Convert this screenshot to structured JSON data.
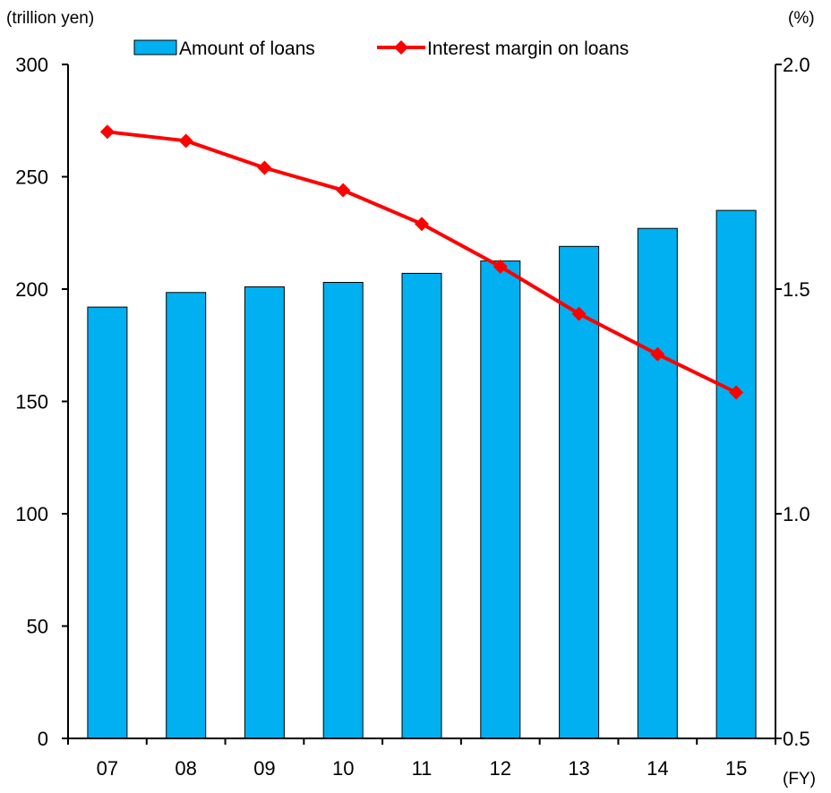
{
  "chart_data": {
    "type": "bar+line",
    "categories": [
      "07",
      "08",
      "09",
      "10",
      "11",
      "12",
      "13",
      "14",
      "15"
    ],
    "series": [
      {
        "name": "Amount of loans",
        "type": "bar",
        "axis": "left",
        "color": "#00b0f0",
        "values": [
          192,
          198.5,
          201,
          203,
          207,
          212.5,
          219,
          227,
          235
        ]
      },
      {
        "name": "Interest margin on loans",
        "type": "line",
        "axis": "right",
        "color": "#ff0000",
        "marker": "diamond",
        "values": [
          1.85,
          1.83,
          1.77,
          1.72,
          1.645,
          1.55,
          1.445,
          1.355,
          1.27
        ]
      }
    ],
    "y_left": {
      "unit": "(trillion yen)",
      "range": [
        0,
        300
      ],
      "ticks": [
        "0",
        "50",
        "100",
        "150",
        "200",
        "250",
        "300"
      ]
    },
    "y_right": {
      "unit": "(%)",
      "range": [
        0.5,
        2.0
      ],
      "ticks": [
        "0.5",
        "1.0",
        "1.5",
        "2.0"
      ]
    },
    "x_unit": "(FY)",
    "grid": false,
    "legend_position": "top"
  }
}
